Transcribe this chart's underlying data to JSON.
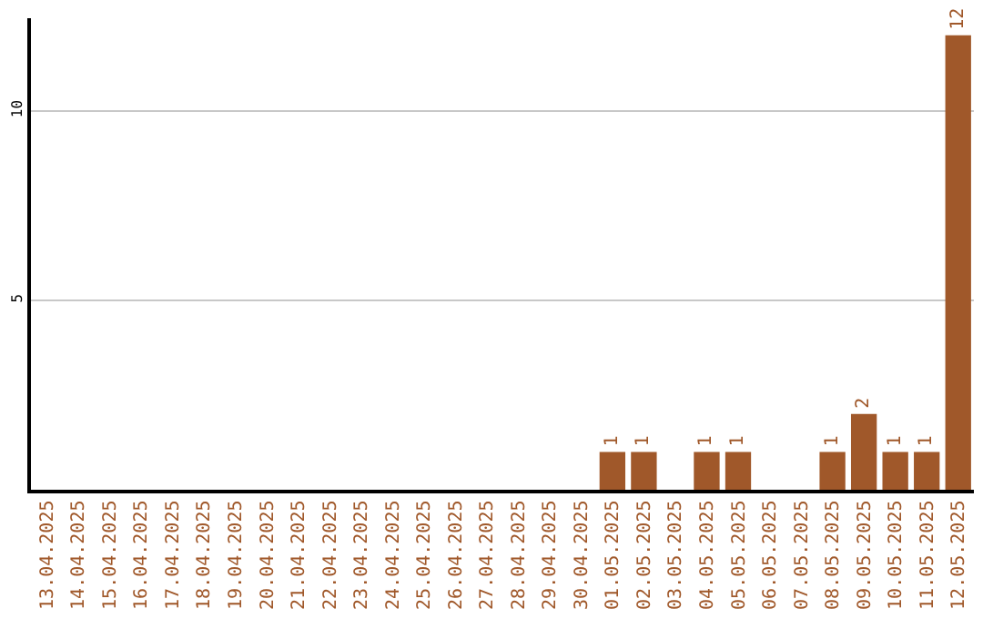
{
  "chart_data": {
    "type": "bar",
    "categories": [
      "13.04.2025",
      "14.04.2025",
      "15.04.2025",
      "16.04.2025",
      "17.04.2025",
      "18.04.2025",
      "19.04.2025",
      "20.04.2025",
      "21.04.2025",
      "22.04.2025",
      "23.04.2025",
      "24.04.2025",
      "25.04.2025",
      "26.04.2025",
      "27.04.2025",
      "28.04.2025",
      "29.04.2025",
      "30.04.2025",
      "01.05.2025",
      "02.05.2025",
      "03.05.2025",
      "04.05.2025",
      "05.05.2025",
      "06.05.2025",
      "07.05.2025",
      "08.05.2025",
      "09.05.2025",
      "10.05.2025",
      "11.05.2025",
      "12.05.2025"
    ],
    "values": [
      0,
      0,
      0,
      0,
      0,
      0,
      0,
      0,
      0,
      0,
      0,
      0,
      0,
      0,
      0,
      0,
      0,
      0,
      1,
      1,
      0,
      1,
      1,
      0,
      0,
      1,
      2,
      1,
      1,
      12
    ],
    "value_labels": [
      null,
      null,
      null,
      null,
      null,
      null,
      null,
      null,
      null,
      null,
      null,
      null,
      null,
      null,
      null,
      null,
      null,
      null,
      "1",
      "1",
      null,
      "1",
      "1",
      null,
      null,
      "1",
      "2",
      "1",
      "1",
      "12"
    ],
    "color": "#a0582a",
    "ylim": [
      0,
      12.45
    ],
    "yticks": [
      5,
      10
    ],
    "grid": "y",
    "legend": false
  }
}
